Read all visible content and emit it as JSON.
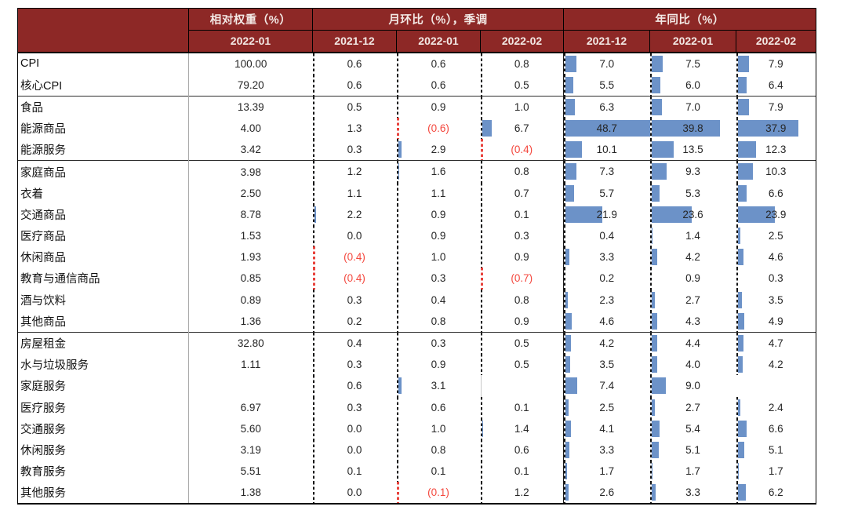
{
  "colors": {
    "header_bg": "#8d2826",
    "header_text": "#f3e9e5",
    "bar_fill": "#6c92c8",
    "negative_text": "#f4473d",
    "negative_axis": "#e8423c",
    "body_text": "#262626",
    "border_dark": "#000000",
    "group_separator": "#2d2d2d",
    "label_divider": "#a9a9a9"
  },
  "chart_data": {
    "type": "table",
    "title": "",
    "header_groups": [
      {
        "label": "相对权重（%）",
        "span": 1
      },
      {
        "label": "月环比（%），季调",
        "span": 3
      },
      {
        "label": "年同比（%）",
        "span": 3
      }
    ],
    "sub_headers": {
      "weight": "2022-01",
      "mom": [
        "2021-12",
        "2022-01",
        "2022-02"
      ],
      "yoy": [
        "2021-12",
        "2022-01",
        "2022-02"
      ]
    },
    "bar_axis_min": 0,
    "bar_scale_max": 48.7,
    "bar_style": "in-cell data bars, blue fill, dashed zero axis at left edge, negatives shown red in parentheses",
    "rows": [
      {
        "label": "CPI",
        "weight": "100.00",
        "mom": [
          "0.6",
          "0.6",
          "0.8"
        ],
        "yoy": [
          "7.0",
          "7.5",
          "7.9"
        ],
        "sep": false
      },
      {
        "label": "核心CPI",
        "weight": "79.20",
        "mom": [
          "0.6",
          "0.6",
          "0.5"
        ],
        "yoy": [
          "5.5",
          "6.0",
          "6.4"
        ],
        "sep": false
      },
      {
        "label": "食品",
        "weight": "13.39",
        "mom": [
          "0.5",
          "0.9",
          "1.0"
        ],
        "yoy": [
          "6.3",
          "7.0",
          "7.9"
        ],
        "sep": true
      },
      {
        "label": "能源商品",
        "weight": "4.00",
        "mom": [
          "1.3",
          "(0.6)",
          "6.7"
        ],
        "yoy": [
          "48.7",
          "39.8",
          "37.9"
        ],
        "sep": false
      },
      {
        "label": "能源服务",
        "weight": "3.42",
        "mom": [
          "0.3",
          "2.9",
          "(0.4)"
        ],
        "yoy": [
          "10.1",
          "13.5",
          "12.3"
        ],
        "sep": false
      },
      {
        "label": "家庭商品",
        "weight": "3.98",
        "mom": [
          "1.2",
          "1.6",
          "0.8"
        ],
        "yoy": [
          "7.3",
          "9.3",
          "10.3"
        ],
        "sep": true
      },
      {
        "label": "衣着",
        "weight": "2.50",
        "mom": [
          "1.1",
          "1.1",
          "0.7"
        ],
        "yoy": [
          "5.7",
          "5.3",
          "6.6"
        ],
        "sep": false
      },
      {
        "label": "交通商品",
        "weight": "8.78",
        "mom": [
          "2.2",
          "0.9",
          "0.1"
        ],
        "yoy": [
          "21.9",
          "23.6",
          "23.9"
        ],
        "sep": false
      },
      {
        "label": "医疗商品",
        "weight": "1.53",
        "mom": [
          "0.0",
          "0.9",
          "0.3"
        ],
        "yoy": [
          "0.4",
          "1.4",
          "2.5"
        ],
        "sep": false
      },
      {
        "label": "休闲商品",
        "weight": "1.93",
        "mom": [
          "(0.4)",
          "1.0",
          "0.9"
        ],
        "yoy": [
          "3.3",
          "4.2",
          "4.6"
        ],
        "sep": false
      },
      {
        "label": "教育与通信商品",
        "weight": "0.85",
        "mom": [
          "(0.4)",
          "0.3",
          "(0.7)"
        ],
        "yoy": [
          "0.2",
          "0.9",
          "0.3"
        ],
        "sep": false
      },
      {
        "label": "酒与饮料",
        "weight": "0.89",
        "mom": [
          "0.3",
          "0.4",
          "0.8"
        ],
        "yoy": [
          "2.3",
          "2.7",
          "3.5"
        ],
        "sep": false
      },
      {
        "label": "其他商品",
        "weight": "1.36",
        "mom": [
          "0.2",
          "0.8",
          "0.9"
        ],
        "yoy": [
          "4.6",
          "4.3",
          "4.9"
        ],
        "sep": false
      },
      {
        "label": "房屋租金",
        "weight": "32.80",
        "mom": [
          "0.4",
          "0.3",
          "0.5"
        ],
        "yoy": [
          "4.2",
          "4.4",
          "4.7"
        ],
        "sep": true
      },
      {
        "label": "水与垃圾服务",
        "weight": "1.11",
        "mom": [
          "0.3",
          "0.9",
          "0.5"
        ],
        "yoy": [
          "3.5",
          "4.0",
          "4.2"
        ],
        "sep": false
      },
      {
        "label": "家庭服务",
        "weight": "",
        "mom": [
          "0.6",
          "3.1",
          ""
        ],
        "yoy": [
          "7.4",
          "9.0",
          ""
        ],
        "sep": false
      },
      {
        "label": "医疗服务",
        "weight": "6.97",
        "mom": [
          "0.3",
          "0.6",
          "0.1"
        ],
        "yoy": [
          "2.5",
          "2.7",
          "2.4"
        ],
        "sep": false
      },
      {
        "label": "交通服务",
        "weight": "5.60",
        "mom": [
          "0.0",
          "1.0",
          "1.4"
        ],
        "yoy": [
          "4.1",
          "5.4",
          "6.6"
        ],
        "sep": false
      },
      {
        "label": "休闲服务",
        "weight": "3.19",
        "mom": [
          "0.0",
          "0.8",
          "0.6"
        ],
        "yoy": [
          "3.3",
          "5.1",
          "5.1"
        ],
        "sep": false
      },
      {
        "label": "教育服务",
        "weight": "5.51",
        "mom": [
          "0.1",
          "0.1",
          "0.1"
        ],
        "yoy": [
          "1.7",
          "1.7",
          "1.7"
        ],
        "sep": false
      },
      {
        "label": "其他服务",
        "weight": "1.38",
        "mom": [
          "0.0",
          "(0.1)",
          "1.2"
        ],
        "yoy": [
          "2.6",
          "3.3",
          "6.2"
        ],
        "sep": false
      }
    ]
  }
}
